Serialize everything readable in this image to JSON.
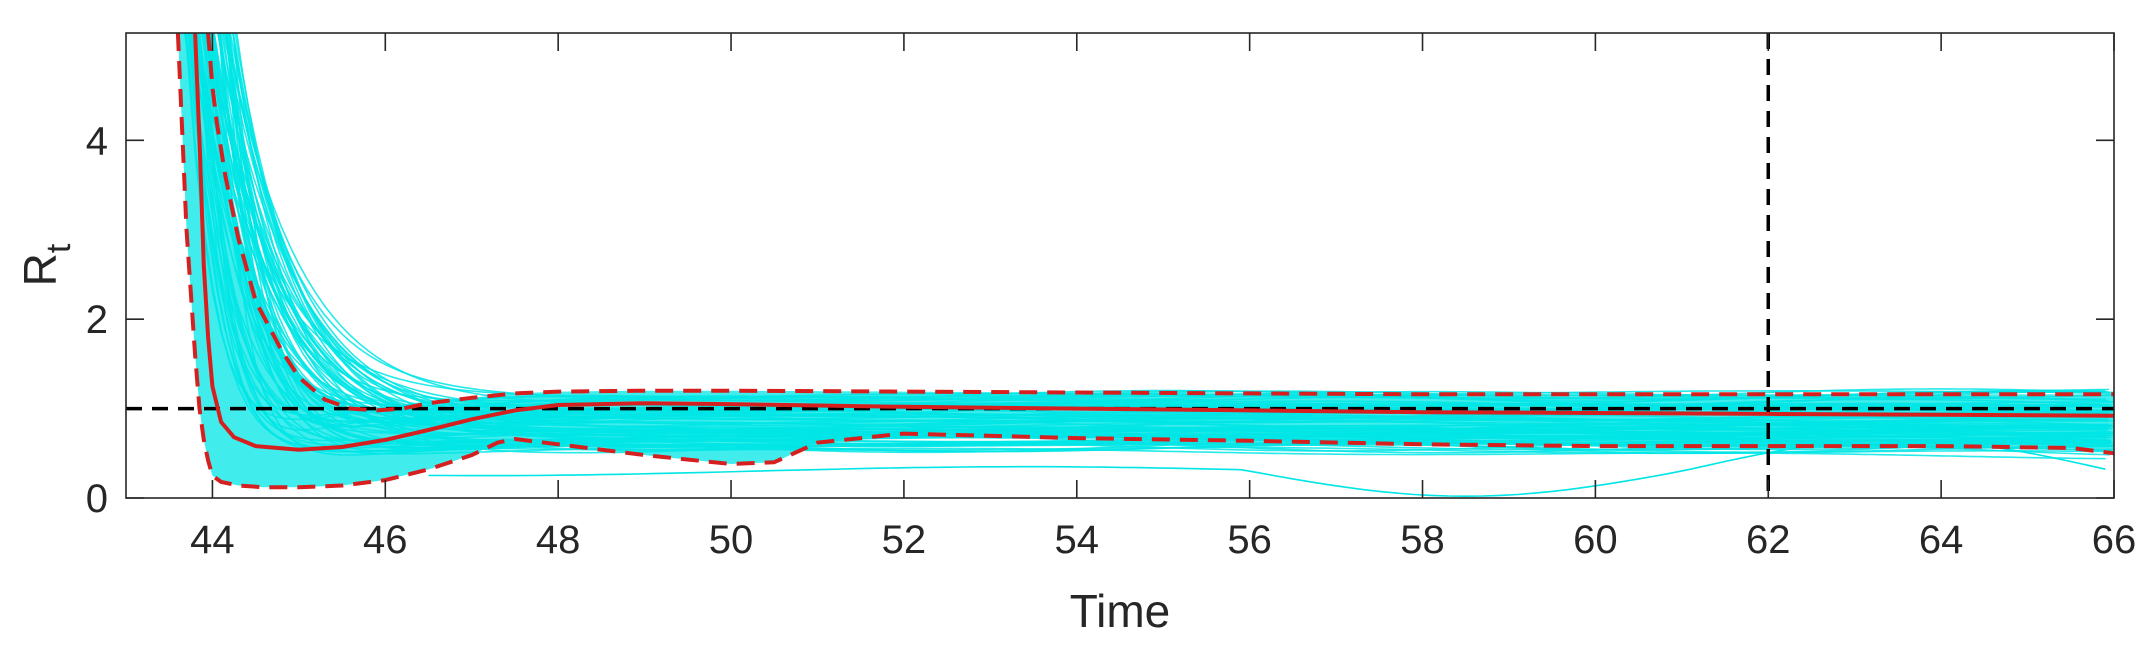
{
  "chart_data": {
    "type": "line",
    "xlabel": "Time",
    "ylabel": "R",
    "ylabel_subscript": "t",
    "xlim": [
      43,
      66
    ],
    "ylim": [
      0,
      5.2
    ],
    "xticks": [
      44,
      46,
      48,
      50,
      52,
      54,
      56,
      58,
      60,
      62,
      64,
      66
    ],
    "yticks": [
      0,
      2,
      4
    ],
    "x_tick_labels": [
      "44",
      "46",
      "48",
      "50",
      "52",
      "54",
      "56",
      "58",
      "60",
      "62",
      "64",
      "66"
    ],
    "y_tick_labels": [
      "0",
      "2",
      "4"
    ],
    "reference_lines": {
      "horizontal_y": 1,
      "vertical_x": 62,
      "color": "#000000",
      "style": "dashed"
    },
    "ensemble": {
      "color": "#00e5e5",
      "description_count": 80
    },
    "series": [
      {
        "role": "median",
        "color": "#d62020",
        "style": "solid",
        "x": [
          43.8,
          43.85,
          43.9,
          43.95,
          44.0,
          44.1,
          44.25,
          44.5,
          45,
          45.5,
          46,
          46.5,
          47,
          47.5,
          48,
          49,
          50,
          52,
          54,
          56,
          58,
          60,
          62,
          64,
          66
        ],
        "y": [
          5.2,
          4.0,
          2.6,
          1.8,
          1.25,
          0.85,
          0.68,
          0.58,
          0.54,
          0.57,
          0.65,
          0.76,
          0.88,
          0.98,
          1.04,
          1.06,
          1.05,
          1.02,
          1.0,
          0.98,
          0.96,
          0.95,
          0.94,
          0.93,
          0.92
        ]
      },
      {
        "role": "upper-bound",
        "color": "#d62020",
        "style": "dashed",
        "x": [
          43.95,
          44.0,
          44.05,
          44.15,
          44.3,
          44.5,
          44.8,
          45,
          45.3,
          45.6,
          45.9,
          46.2,
          46.5,
          47,
          47.5,
          48,
          49,
          50,
          52,
          54,
          56,
          58,
          60,
          62,
          64,
          66
        ],
        "y": [
          5.2,
          4.6,
          4.2,
          3.6,
          2.9,
          2.2,
          1.65,
          1.35,
          1.1,
          1.0,
          0.98,
          1.0,
          1.06,
          1.12,
          1.17,
          1.19,
          1.2,
          1.2,
          1.19,
          1.18,
          1.17,
          1.16,
          1.16,
          1.16,
          1.16,
          1.16
        ]
      },
      {
        "role": "lower-bound",
        "color": "#d62020",
        "style": "dashed",
        "x": [
          43.6,
          43.7,
          43.8,
          43.85,
          43.9,
          43.95,
          44.0,
          44.1,
          44.3,
          44.6,
          45,
          45.5,
          46,
          46.5,
          47,
          47.3,
          47.5,
          48,
          49,
          50,
          50.5,
          51,
          52,
          54,
          56,
          58,
          60,
          62,
          64,
          65.5,
          66
        ],
        "y": [
          5.2,
          3.0,
          1.6,
          1.0,
          0.65,
          0.42,
          0.25,
          0.18,
          0.14,
          0.12,
          0.12,
          0.14,
          0.2,
          0.32,
          0.48,
          0.62,
          0.66,
          0.6,
          0.48,
          0.38,
          0.4,
          0.62,
          0.72,
          0.67,
          0.64,
          0.6,
          0.58,
          0.58,
          0.58,
          0.56,
          0.5
        ]
      }
    ]
  }
}
